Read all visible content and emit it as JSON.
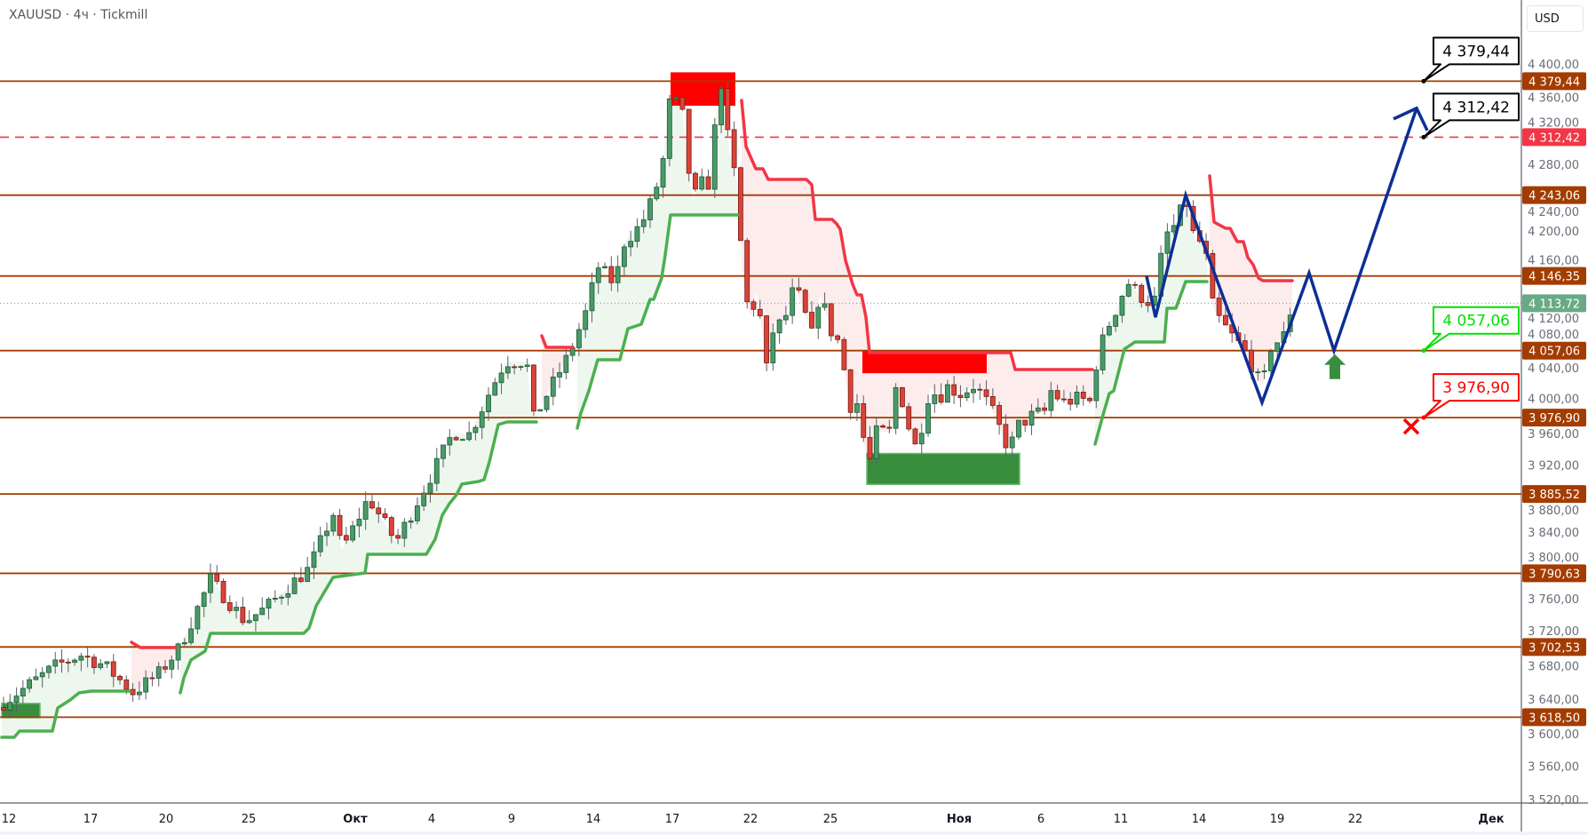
{
  "header": {
    "title": "XAUUSD · 4ч · Tickmill",
    "currency": "USD"
  },
  "chart_data": {
    "type": "candlestick",
    "title": "XAUUSD · 4ч · Tickmill",
    "symbol": "XAUUSD",
    "timeframe": "4ч",
    "broker": "Tickmill",
    "ylim": [
      3510,
      4420
    ],
    "y_ticks": [
      "4 400,00",
      "4 360,00",
      "4 320,00",
      "4 280,00",
      "4 240,00",
      "4 200,00",
      "4 160,00",
      "4 120,00",
      "4 080,00",
      "4 040,00",
      "4 000,00",
      "3 960,00",
      "3 920,00",
      "3 880,00",
      "3 840,00",
      "3 800,00",
      "3 760,00",
      "3 720,00",
      "3 680,00",
      "3 640,00",
      "3 600,00",
      "3 560,00",
      "3 520,00"
    ],
    "y_tick_values": [
      4400,
      4360,
      4320,
      4280,
      4240,
      4200,
      4160,
      4120,
      4080,
      4040,
      4000,
      3960,
      3920,
      3880,
      3840,
      3800,
      3760,
      3720,
      3680,
      3640,
      3600,
      3560,
      3520
    ],
    "x_ticks": [
      "12",
      "17",
      "20",
      "25",
      "Окт",
      "4",
      "9",
      "14",
      "17",
      "22",
      "25",
      "Ноя",
      "6",
      "11",
      "14",
      "19",
      "22",
      "Дек"
    ],
    "levels": [
      {
        "value": 4379.44,
        "label": "4 379,44",
        "style": "solid",
        "color": "#a33c00"
      },
      {
        "value": 4312.42,
        "label": "4 312,42",
        "style": "dashed",
        "color": "#f23645"
      },
      {
        "value": 4243.06,
        "label": "4 243,06",
        "style": "solid",
        "color": "#a33c00"
      },
      {
        "value": 4146.35,
        "label": "4 146,35",
        "style": "solid",
        "color": "#a33c00"
      },
      {
        "value": 4057.06,
        "label": "4 057,06",
        "style": "solid",
        "color": "#a33c00"
      },
      {
        "value": 3976.9,
        "label": "3 976,90",
        "style": "solid",
        "color": "#a33c00"
      },
      {
        "value": 3885.52,
        "label": "3 885,52",
        "style": "solid",
        "color": "#a33c00"
      },
      {
        "value": 3790.63,
        "label": "3 790,63",
        "style": "solid",
        "color": "#a33c00"
      },
      {
        "value": 3702.53,
        "label": "3 702,53",
        "style": "solid",
        "color": "#a33c00"
      },
      {
        "value": 3618.5,
        "label": "3 618,50",
        "style": "solid",
        "color": "#a33c00"
      }
    ],
    "last_price": {
      "value": 4113.72,
      "label": "4 113,72",
      "color": "#6aa985"
    },
    "callouts": [
      {
        "value": 4379.44,
        "label": "4 379,44",
        "color": "#000000"
      },
      {
        "value": 4312.42,
        "label": "4 312,42",
        "color": "#000000"
      },
      {
        "value": 4057.06,
        "label": "4 057,06",
        "color": "#00e000"
      },
      {
        "value": 3976.9,
        "label": "3 976,90",
        "color": "#ff0000"
      }
    ],
    "zones": [
      {
        "kind": "supply",
        "color": "#ff0000",
        "top": 4390,
        "bottom": 4350
      },
      {
        "kind": "supply",
        "color": "#ff0000",
        "top": 4057,
        "bottom": 4030
      },
      {
        "kind": "demand",
        "color": "#388e3c",
        "top": 3934,
        "bottom": 3897
      },
      {
        "kind": "demand",
        "color": "#388e3c",
        "top": 3635,
        "bottom": 3618
      }
    ],
    "forecast_path_prices": [
      4146,
      4097,
      4243,
      3995,
      4150,
      4057,
      4347
    ],
    "signals": {
      "entry_arrow": "up-arrow-icon",
      "stop_marker": "x-mark-icon"
    },
    "colors": {
      "up": "#4a9a6a",
      "down": "#d9443a",
      "trend_up": "#4caf50",
      "trend_down": "#f23645",
      "forecast": "#0d2f94",
      "level": "#a33c00"
    }
  }
}
